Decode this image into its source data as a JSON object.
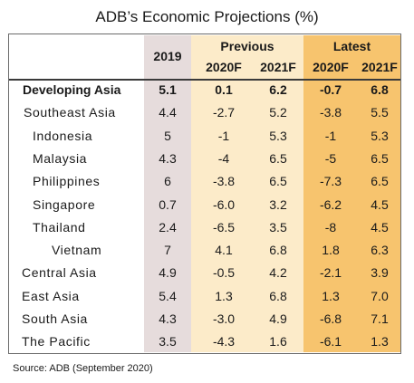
{
  "title": "ADB’s Economic Projections (%)",
  "source": "Source: ADB (September 2020)",
  "headers": {
    "y2019": "2019",
    "previous": "Previous",
    "latest": "Latest",
    "prev_2020": "2020F",
    "prev_2021": "2021F",
    "latest_2020": "2020F",
    "latest_2021": "2021F"
  },
  "colors": {
    "col_2019": "#e6dcdc",
    "col_previous": "#fcebc9",
    "col_latest": "#f7c46e"
  },
  "chart_data": {
    "type": "table",
    "title": "ADB’s Economic Projections (%)",
    "columns": [
      "2019",
      "Previous 2020F",
      "Previous 2021F",
      "Latest 2020F",
      "Latest 2021F"
    ],
    "rows": [
      {
        "label": "Developing Asia",
        "bold": true,
        "values": [
          "5.1",
          "0.1",
          "6.2",
          "-0.7",
          "6.8"
        ]
      },
      {
        "label": "Southeast Asia",
        "values": [
          "4.4",
          "-2.7",
          "5.2",
          "-3.8",
          "5.5"
        ]
      },
      {
        "label": "Indonesia",
        "values": [
          "5",
          "-1",
          "5.3",
          "-1",
          "5.3"
        ]
      },
      {
        "label": "Malaysia",
        "values": [
          "4.3",
          "-4",
          "6.5",
          "-5",
          "6.5"
        ]
      },
      {
        "label": "Philippines",
        "values": [
          "6",
          "-3.8",
          "6.5",
          "-7.3",
          "6.5"
        ]
      },
      {
        "label": "Singapore",
        "values": [
          "0.7",
          "-6.0",
          "3.2",
          "-6.2",
          "4.5"
        ]
      },
      {
        "label": "Thailand",
        "values": [
          "2.4",
          "-6.5",
          "3.5",
          "-8",
          "4.5"
        ]
      },
      {
        "label": "Vietnam",
        "values": [
          "7",
          "4.1",
          "6.8",
          "1.8",
          "6.3"
        ]
      },
      {
        "label": "Central Asia",
        "values": [
          "4.9",
          "-0.5",
          "4.2",
          "-2.1",
          "3.9"
        ]
      },
      {
        "label": "East Asia",
        "values": [
          "5.4",
          "1.3",
          "6.8",
          "1.3",
          "7.0"
        ]
      },
      {
        "label": "South Asia",
        "values": [
          "4.3",
          "-3.0",
          "4.9",
          "-6.8",
          "7.1"
        ]
      },
      {
        "label": "The Pacific",
        "values": [
          "3.5",
          "-4.3",
          "1.6",
          "-6.1",
          "1.3"
        ]
      }
    ]
  }
}
